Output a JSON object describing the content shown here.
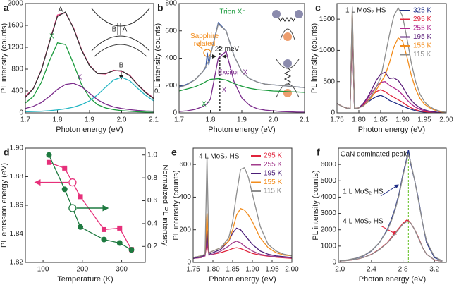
{
  "chart_data": [
    {
      "type": "line",
      "panel_label": "a",
      "xlabel": "Photon energy (eV)",
      "ylabel": "PL intensity (counts)",
      "xlim": [
        1.7,
        2.1
      ],
      "ylim": [
        0,
        2000
      ],
      "xticks": [
        1.7,
        1.8,
        1.9,
        {
          "value": 2,
          "label": "2.0"
        },
        2.1
      ],
      "yticks": [
        0,
        400,
        800,
        1200,
        1600,
        2000
      ],
      "x": [
        1.7,
        1.725,
        1.75,
        1.775,
        1.8,
        1.825,
        1.85,
        1.875,
        1.9,
        1.925,
        1.95,
        1.975,
        2.0,
        2.025,
        2.05,
        2.075,
        2.1
      ],
      "series": [
        {
          "color": "#e8347c",
          "values": [
            300,
            450,
            790,
            1300,
            1790,
            1830,
            1560,
            1160,
            870,
            720,
            710,
            780,
            760,
            690,
            520,
            380,
            270
          ]
        },
        {
          "color": "#1a9a3c",
          "values": [
            180,
            300,
            560,
            950,
            1280,
            1250,
            900,
            520,
            280,
            150,
            90,
            60,
            40,
            30,
            20,
            15,
            10
          ]
        },
        {
          "color": "#7b2c8c",
          "values": [
            80,
            120,
            190,
            300,
            430,
            520,
            540,
            480,
            360,
            240,
            160,
            110,
            80,
            60,
            45,
            35,
            30
          ]
        },
        {
          "color": "#26b7c4",
          "values": [
            20,
            25,
            30,
            40,
            55,
            75,
            105,
            150,
            220,
            330,
            470,
            600,
            650,
            590,
            450,
            320,
            220
          ]
        },
        {
          "color": "#333333",
          "values": [
            280,
            445,
            780,
            1290,
            1765,
            1845,
            1545,
            1150,
            860,
            720,
            720,
            770,
            770,
            680,
            515,
            370,
            260
          ]
        }
      ],
      "annotations": [
        {
          "text": "A",
          "color": "#333333"
        },
        {
          "text": "X⁻",
          "color": "#1a9a3c"
        },
        {
          "text": "X",
          "color": "#7b2c8c"
        },
        {
          "text": "B",
          "color": "#333333"
        },
        {
          "text": "B",
          "color": "#333333"
        },
        {
          "text": "A",
          "color": "#333333"
        }
      ]
    },
    {
      "type": "line",
      "panel_label": "b",
      "xlabel": "Photon energy (eV)",
      "ylabel": "PL intensity (counts)",
      "xlim": [
        1.7,
        2.1
      ],
      "ylim": [
        0,
        800
      ],
      "xticks": [
        1.7,
        1.8,
        1.9,
        {
          "value": 2,
          "label": "2.0"
        },
        2.1
      ],
      "yticks": [
        0,
        200,
        400,
        600,
        800
      ],
      "x": [
        1.7,
        1.725,
        1.75,
        1.775,
        1.785,
        1.79,
        1.795,
        1.8,
        1.825,
        1.85,
        1.875,
        1.9,
        1.925,
        1.95,
        1.975,
        2.0,
        2.025,
        2.05,
        2.075,
        2.1
      ],
      "series": [
        {
          "color": "#3a5ba8",
          "values": [
            190,
            210,
            240,
            300,
            330,
            440,
            350,
            420,
            660,
            600,
            420,
            300,
            250,
            225,
            210,
            205,
            200,
            195,
            190,
            185
          ]
        },
        {
          "color": "#1a9a3c",
          "values": [
            160,
            175,
            190,
            215,
            228,
            235,
            240,
            245,
            250,
            240,
            215,
            195,
            180,
            170,
            165,
            160,
            158,
            155,
            153,
            150
          ]
        },
        {
          "color": "#7b2c8c",
          "values": [
            10,
            15,
            25,
            45,
            60,
            70,
            85,
            100,
            400,
            450,
            230,
            110,
            55,
            30,
            20,
            15,
            10,
            8,
            6,
            5
          ]
        },
        {
          "color": "#8c8c8c",
          "values": [
            185,
            205,
            240,
            300,
            340,
            360,
            380,
            420,
            650,
            600,
            420,
            300,
            250,
            225,
            210,
            205,
            200,
            195,
            190,
            185
          ]
        }
      ],
      "marker_line_x": 1.83,
      "marker_line_color": "#000000",
      "annotations": [
        {
          "text": "Trion X⁻",
          "color": "#1a9a3c"
        },
        {
          "text": "Sapphire related",
          "color": "#f28c1c"
        },
        {
          "text": "Exciton X",
          "color": "#7b2c8c"
        },
        {
          "text": "22 meV",
          "color": "#222222"
        },
        {
          "text": "X⁻",
          "color": "#1a9a3c"
        },
        {
          "text": "X",
          "color": "#7b2c8c"
        }
      ]
    },
    {
      "type": "line",
      "panel_label": "c",
      "xlabel": "Photon energy (eV)",
      "ylabel": "PL intensity (counts)",
      "xlim": [
        1.75,
        2.0
      ],
      "ylim": [
        0,
        1750
      ],
      "xticks": [
        1.75,
        {
          "value": 1.8,
          "label": "1.80"
        },
        1.85,
        {
          "value": 1.9,
          "label": "1.90"
        },
        1.95,
        {
          "value": 2,
          "label": "2.00"
        }
      ],
      "yticks": [
        0,
        500,
        1000,
        1500
      ],
      "legend_title": "1 L MoS₂ HS",
      "x": [
        1.75,
        1.76,
        1.77,
        1.78,
        1.785,
        1.79,
        1.8,
        1.81,
        1.82,
        1.83,
        1.84,
        1.85,
        1.86,
        1.87,
        1.88,
        1.89,
        1.9,
        1.91,
        1.92,
        1.93,
        1.94,
        1.95,
        1.96,
        1.97,
        1.98,
        1.99,
        2.0
      ],
      "series": [
        {
          "name": "325 K",
          "color": "#1f2d86",
          "values": [
            150,
            110,
            80,
            70,
            1400,
            70,
            80,
            120,
            170,
            220,
            260,
            280,
            250,
            200,
            170,
            140,
            110,
            80,
            55,
            35,
            20,
            12,
            8,
            5,
            3,
            2,
            1
          ]
        },
        {
          "name": "295 K",
          "color": "#e0243c",
          "values": [
            150,
            110,
            80,
            70,
            1450,
            70,
            80,
            130,
            200,
            280,
            340,
            370,
            340,
            290,
            250,
            210,
            170,
            120,
            80,
            50,
            30,
            20,
            12,
            8,
            5,
            3,
            2
          ]
        },
        {
          "name": "255 K",
          "color": "#b0288f",
          "values": [
            150,
            110,
            80,
            70,
            1500,
            70,
            80,
            140,
            230,
            330,
            420,
            490,
            500,
            440,
            400,
            360,
            290,
            210,
            140,
            90,
            55,
            35,
            20,
            12,
            8,
            5,
            3
          ]
        },
        {
          "name": "195 K",
          "color": "#5b1e7a",
          "values": [
            150,
            110,
            80,
            70,
            1600,
            70,
            80,
            150,
            250,
            380,
            520,
            620,
            650,
            550,
            560,
            520,
            420,
            300,
            200,
            130,
            80,
            50,
            30,
            20,
            10,
            8,
            5
          ]
        },
        {
          "name": "155 K",
          "color": "#f28c1c",
          "values": [
            150,
            110,
            80,
            70,
            1650,
            70,
            80,
            110,
            170,
            260,
            370,
            480,
            600,
            800,
            1050,
            1200,
            1150,
            900,
            600,
            380,
            230,
            140,
            90,
            55,
            30,
            15,
            10
          ]
        },
        {
          "name": "115 K",
          "color": "#8c8c8c",
          "values": [
            150,
            110,
            80,
            70,
            1700,
            70,
            80,
            110,
            180,
            290,
            420,
            560,
            900,
            1250,
            1550,
            1680,
            1550,
            1200,
            800,
            500,
            300,
            180,
            110,
            70,
            40,
            20,
            10
          ]
        }
      ]
    },
    {
      "type": "line",
      "panel_label": "d",
      "xlabel": "Temperature (K)",
      "ylabel": "PL emission energy (eV)",
      "y2label": "Normalized PL intensity",
      "xlim": [
        55,
        360
      ],
      "ylim": [
        1.82,
        1.9
      ],
      "y2lim": [
        0.06,
        1.06
      ],
      "xticks": [
        100,
        200,
        300
      ],
      "yticks": [
        1.82,
        1.84,
        1.86,
        1.88,
        {
          "value": 1.9,
          "label": "1.90"
        }
      ],
      "y2ticks": [
        0.2,
        0.4,
        0.6,
        0.8,
        {
          "value": 1,
          "label": "1.0"
        }
      ],
      "x": [
        115,
        155,
        195,
        255,
        295,
        325
      ],
      "series": [
        {
          "color": "#e6307a",
          "marker": "square",
          "values": [
            1.89,
            1.886,
            1.866,
            1.843,
            1.844,
            1.829
          ]
        },
        {
          "color": "#1e7a40",
          "marker": "circle",
          "axis": "y2",
          "values": [
            1.0,
            0.7,
            0.37,
            0.26,
            0.23,
            0.17
          ]
        }
      ]
    },
    {
      "type": "line",
      "panel_label": "e",
      "xlabel": "Photon energy (eV)",
      "ylabel": "PL intensity (counts)",
      "xlim": [
        1.75,
        2.0
      ],
      "ylim": [
        0,
        700
      ],
      "xticks": [
        1.75,
        {
          "value": 1.8,
          "label": "1.80"
        },
        1.85,
        {
          "value": 1.9,
          "label": "1.90"
        },
        1.95,
        {
          "value": 2,
          "label": "2.00"
        }
      ],
      "yticks": [
        0,
        200,
        400,
        600
      ],
      "legend_title": "4 L MoS₂ HS",
      "x": [
        1.75,
        1.77,
        1.78,
        1.785,
        1.79,
        1.8,
        1.82,
        1.84,
        1.85,
        1.86,
        1.87,
        1.88,
        1.89,
        1.9,
        1.92,
        1.94,
        1.96,
        1.98,
        2.0
      ],
      "series": [
        {
          "name": "295 K",
          "color": "#e0243c",
          "values": [
            25,
            30,
            40,
            120,
            45,
            50,
            60,
            75,
            85,
            90,
            85,
            75,
            65,
            55,
            45,
            38,
            32,
            28,
            25
          ]
        },
        {
          "name": "255 K",
          "color": "#a23c8c",
          "values": [
            25,
            30,
            40,
            150,
            45,
            50,
            70,
            100,
            120,
            130,
            120,
            100,
            85,
            70,
            50,
            40,
            35,
            30,
            28
          ]
        },
        {
          "name": "195 K",
          "color": "#4b1e78",
          "values": [
            25,
            35,
            45,
            200,
            50,
            60,
            80,
            130,
            180,
            210,
            200,
            170,
            140,
            110,
            70,
            50,
            40,
            35,
            30
          ]
        },
        {
          "name": "155 K",
          "color": "#f28c1c",
          "values": [
            30,
            40,
            50,
            300,
            60,
            70,
            90,
            130,
            200,
            290,
            330,
            320,
            290,
            250,
            150,
            90,
            60,
            45,
            40
          ]
        },
        {
          "name": "115 K",
          "color": "#8c8c8c",
          "values": [
            30,
            40,
            50,
            650,
            60,
            70,
            90,
            150,
            250,
            420,
            570,
            580,
            520,
            420,
            220,
            110,
            70,
            50,
            40
          ]
        }
      ]
    },
    {
      "type": "line",
      "panel_label": "f",
      "xlabel": "Photon energy (eV)",
      "ylabel": "PL intensity (counts)",
      "xlim": [
        1.98,
        3.35
      ],
      "ylim": [
        0,
        7000
      ],
      "xticks": [
        {
          "value": 2,
          "label": "2.0"
        },
        2.4,
        2.8,
        3.2
      ],
      "yticks": [
        0,
        1000,
        2000,
        3000,
        4000,
        5000,
        6000
      ],
      "x": [
        2.0,
        2.1,
        2.2,
        2.3,
        2.4,
        2.5,
        2.6,
        2.65,
        2.7,
        2.75,
        2.8,
        2.85,
        2.87,
        2.9,
        2.95,
        3.0,
        3.05,
        3.1,
        3.2,
        3.3
      ],
      "series": [
        {
          "color": "#1f2d86",
          "values": [
            100,
            150,
            250,
            400,
            700,
            1200,
            2000,
            2600,
            3300,
            4200,
            5400,
            6400,
            6900,
            6000,
            5000,
            3800,
            2400,
            1200,
            300,
            100
          ]
        },
        {
          "color": "#e0243c",
          "values": [
            80,
            120,
            180,
            300,
            500,
            800,
            1200,
            1500,
            1800,
            2100,
            2400,
            2600,
            2550,
            2400,
            2000,
            1500,
            900,
            500,
            150,
            60
          ]
        },
        {
          "color": "#8c8c8c",
          "values": [
            100,
            160,
            260,
            420,
            720,
            1200,
            1950,
            2500,
            3200,
            4100,
            5300,
            6300,
            6600,
            6100,
            5000,
            3700,
            2400,
            1300,
            350,
            100
          ]
        },
        {
          "color": "#8c8c8c",
          "values": [
            80,
            120,
            190,
            300,
            480,
            780,
            1180,
            1450,
            1750,
            2050,
            2350,
            2500,
            2500,
            2400,
            2000,
            1450,
            900,
            500,
            160,
            60
          ]
        }
      ],
      "marker_line_x": 2.87,
      "marker_line_color": "#7ac943",
      "annotations": [
        {
          "text": "GaN dominated peak",
          "color": "#222222"
        },
        {
          "text": "1 L MoS₂ HS",
          "color": "#222222"
        },
        {
          "text": "4 L MoS₂ HS",
          "color": "#222222"
        }
      ]
    }
  ]
}
